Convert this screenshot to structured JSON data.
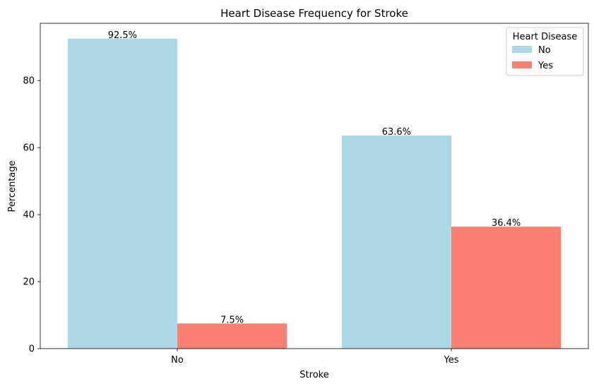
{
  "chart_data": {
    "type": "bar",
    "title": "Heart Disease Frequency for Stroke",
    "xlabel": "Stroke",
    "ylabel": "Percentage",
    "categories": [
      "No",
      "Yes"
    ],
    "series": [
      {
        "name": "No",
        "color": "#add8e6",
        "values": [
          92.5,
          63.6
        ],
        "labels": [
          "92.5%",
          "63.6%"
        ]
      },
      {
        "name": "Yes",
        "color": "#fa8072",
        "values": [
          7.5,
          36.4
        ],
        "labels": [
          "7.5%",
          "36.4%"
        ]
      }
    ],
    "ylim": [
      0,
      97.1
    ],
    "yticks": [
      0,
      20,
      40,
      60,
      80
    ],
    "ytick_labels": [
      "0",
      "20",
      "40",
      "60",
      "80"
    ],
    "grid": false,
    "legend": {
      "title": "Heart Disease",
      "placement": "top-right",
      "entries": [
        "No",
        "Yes"
      ]
    }
  }
}
